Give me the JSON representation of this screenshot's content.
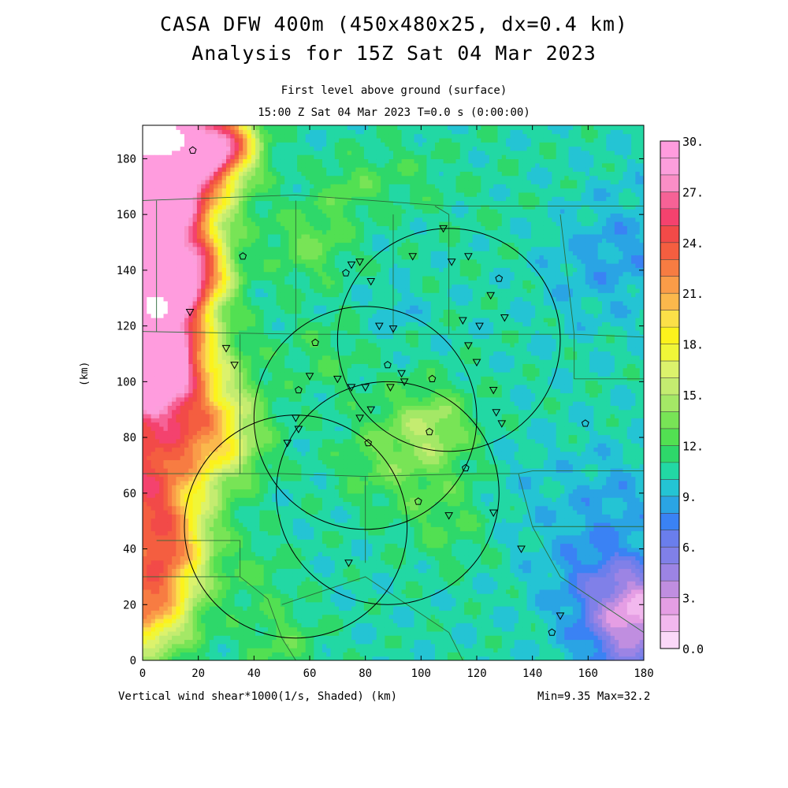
{
  "chart_data": {
    "type": "heatmap",
    "title": "CASA DFW 400m (450x480x25, dx=0.4 km)",
    "subtitle": "Analysis for 15Z Sat 04 Mar 2023",
    "level_label": "First level above ground (surface)",
    "time_label": "15:00 Z Sat 04 Mar 2023    T=0.0 s (0:00:00)",
    "xlabel": "Vertical wind shear*1000(1/s, Shaded)  (km)",
    "ylabel": "(km)",
    "minmax_label": "Min=9.35 Max=32.2",
    "xlim": [
      0,
      180
    ],
    "ylim": [
      0,
      192
    ],
    "x_ticks": [
      "0",
      "20",
      "40",
      "60",
      "80",
      "100",
      "120",
      "140",
      "160",
      "180"
    ],
    "y_ticks": [
      "0",
      "20",
      "40",
      "60",
      "80",
      "100",
      "120",
      "140",
      "160",
      "180"
    ],
    "colorbar": {
      "min": 0,
      "max": 30,
      "step": 1.5,
      "labels": [
        "0.0",
        "3.",
        "6.",
        "9.",
        "12.",
        "15.",
        "18.",
        "21.",
        "24.",
        "27.",
        "30."
      ],
      "colors": [
        "#fbd8f8",
        "#f2b8ee",
        "#e59ee4",
        "#c08ee0",
        "#9c84e4",
        "#8080e8",
        "#6a7eec",
        "#3a82f4",
        "#2aa4e4",
        "#24c4d4",
        "#22d8a4",
        "#2ed86a",
        "#52e052",
        "#78e456",
        "#a4e866",
        "#c4ec70",
        "#dcf26c",
        "#f0f638",
        "#fcf21c",
        "#fce048",
        "#fbb84c",
        "#fa9c48",
        "#f77c42",
        "#f45e40",
        "#f24a48",
        "#f4426e",
        "#f66296",
        "#fa8ec6",
        "#fc9edc",
        "#ff9cde"
      ]
    },
    "field": {
      "base": 15.5,
      "blobs": [
        [
          0,
          150,
          22,
          14
        ],
        [
          0,
          100,
          25,
          18
        ],
        [
          0,
          60,
          18,
          14
        ],
        [
          0,
          20,
          18,
          12
        ],
        [
          10,
          185,
          25,
          15
        ],
        [
          5,
          170,
          22,
          14
        ],
        [
          20,
          140,
          14,
          8
        ],
        [
          8,
          130,
          18,
          10
        ],
        [
          5,
          110,
          18,
          10
        ],
        [
          25,
          80,
          10,
          12
        ],
        [
          10,
          40,
          12,
          10
        ],
        [
          30,
          185,
          15,
          7
        ],
        [
          60,
          150,
          4,
          10
        ],
        [
          75,
          170,
          3,
          8
        ],
        [
          95,
          175,
          1.5,
          10
        ],
        [
          100,
          80,
          4,
          14
        ],
        [
          105,
          85,
          3,
          8
        ],
        [
          85,
          70,
          2,
          12
        ],
        [
          110,
          50,
          2.5,
          12
        ],
        [
          120,
          160,
          0.5,
          20
        ],
        [
          50,
          5,
          3,
          10
        ],
        [
          165,
          30,
          -4,
          14
        ],
        [
          175,
          10,
          -7,
          12
        ],
        [
          180,
          20,
          -6,
          10
        ],
        [
          170,
          60,
          -2,
          12
        ],
        [
          178,
          150,
          -2,
          15
        ],
        [
          135,
          60,
          -1,
          15
        ],
        [
          160,
          140,
          -1.5,
          14
        ],
        [
          92,
          125,
          -2,
          5
        ],
        [
          40,
          30,
          2,
          10
        ],
        [
          65,
          110,
          2,
          10
        ]
      ],
      "holes": [
        [
          5,
          187,
          10,
          6
        ],
        [
          5,
          127,
          4,
          4
        ]
      ]
    },
    "range_rings": [
      {
        "cx": 110,
        "cy": 115,
        "r": 40
      },
      {
        "cx": 80,
        "cy": 87,
        "r": 40
      },
      {
        "cx": 88,
        "cy": 60,
        "r": 40
      },
      {
        "cx": 55,
        "cy": 48,
        "r": 40
      }
    ],
    "boundaries": [
      [
        [
          0,
          165
        ],
        [
          55,
          167
        ],
        [
          110,
          163
        ],
        [
          175,
          163
        ],
        [
          180,
          163
        ]
      ],
      [
        [
          0,
          118
        ],
        [
          60,
          117
        ],
        [
          110,
          117
        ],
        [
          155,
          117
        ],
        [
          180,
          116
        ]
      ],
      [
        [
          0,
          67
        ],
        [
          50,
          67
        ],
        [
          80,
          66
        ],
        [
          120,
          67
        ],
        [
          135,
          67
        ],
        [
          140,
          68
        ],
        [
          180,
          68
        ]
      ],
      [
        [
          5,
          43
        ],
        [
          35,
          43
        ],
        [
          35,
          30
        ]
      ],
      [
        [
          140,
          48
        ],
        [
          160,
          48
        ],
        [
          180,
          48
        ]
      ],
      [
        [
          155,
          101
        ],
        [
          180,
          101
        ]
      ],
      [
        [
          5,
          165
        ],
        [
          5,
          118
        ]
      ],
      [
        [
          55,
          165
        ],
        [
          55,
          118
        ]
      ],
      [
        [
          35,
          67
        ],
        [
          35,
          117
        ]
      ],
      [
        [
          80,
          66
        ],
        [
          80,
          35
        ]
      ],
      [
        [
          110,
          117
        ],
        [
          110,
          160
        ],
        [
          105,
          163
        ]
      ],
      [
        [
          135,
          67
        ],
        [
          140,
          48
        ],
        [
          150,
          30
        ],
        [
          165,
          20
        ],
        [
          180,
          10
        ]
      ],
      [
        [
          155,
          101
        ],
        [
          155,
          117
        ],
        [
          150,
          160
        ]
      ],
      [
        [
          90,
          117
        ],
        [
          90,
          160
        ]
      ],
      [
        [
          0,
          30
        ],
        [
          35,
          30
        ],
        [
          45,
          22
        ],
        [
          50,
          8
        ],
        [
          55,
          0
        ]
      ],
      [
        [
          50,
          20
        ],
        [
          80,
          30
        ],
        [
          110,
          10
        ],
        [
          115,
          0
        ]
      ]
    ],
    "sites_triangle": [
      [
        17,
        125
      ],
      [
        30,
        112
      ],
      [
        33,
        106
      ],
      [
        55,
        87
      ],
      [
        56,
        83
      ],
      [
        52,
        78
      ],
      [
        78,
        143
      ],
      [
        82,
        136
      ],
      [
        75,
        142
      ],
      [
        85,
        120
      ],
      [
        90,
        119
      ],
      [
        97,
        145
      ],
      [
        108,
        155
      ],
      [
        111,
        143
      ],
      [
        117,
        145
      ],
      [
        121,
        120
      ],
      [
        115,
        122
      ],
      [
        117,
        113
      ],
      [
        120,
        107
      ],
      [
        125,
        131
      ],
      [
        126,
        97
      ],
      [
        127,
        89
      ],
      [
        129,
        85
      ],
      [
        130,
        123
      ],
      [
        93,
        103
      ],
      [
        89,
        98
      ],
      [
        94,
        100
      ],
      [
        80,
        98
      ],
      [
        82,
        90
      ],
      [
        78,
        87
      ],
      [
        110,
        52
      ],
      [
        126,
        53
      ],
      [
        136,
        40
      ],
      [
        150,
        16
      ],
      [
        74,
        35
      ],
      [
        60,
        102
      ],
      [
        70,
        101
      ],
      [
        75,
        98
      ]
    ],
    "sites_pentagon": [
      [
        18,
        183
      ],
      [
        36,
        145
      ],
      [
        62,
        114
      ],
      [
        56,
        97
      ],
      [
        73,
        139
      ],
      [
        88,
        106
      ],
      [
        104,
        101
      ],
      [
        103,
        82
      ],
      [
        81,
        78
      ],
      [
        116,
        69
      ],
      [
        99,
        57
      ],
      [
        128,
        137
      ],
      [
        147,
        10
      ],
      [
        159,
        85
      ]
    ]
  }
}
